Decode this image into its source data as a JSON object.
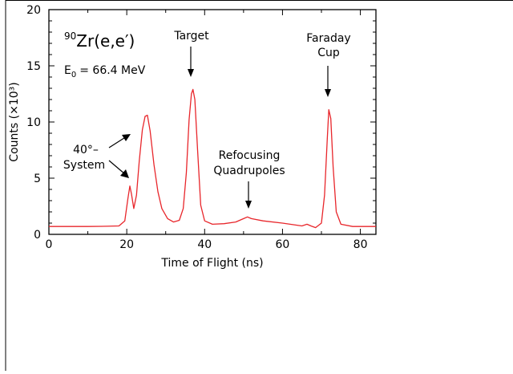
{
  "chart_data": {
    "type": "line",
    "title": "",
    "xlabel": "Time of Flight (ns)",
    "ylabel": "Counts (×10³)",
    "xlim": [
      0,
      84
    ],
    "ylim": [
      0,
      20
    ],
    "xticks": [
      0,
      20,
      40,
      60,
      80
    ],
    "yticks": [
      0,
      5,
      10,
      15,
      20
    ],
    "grid": false,
    "line_color": "#e8262b",
    "series": [
      {
        "name": "",
        "x": [
          0,
          5,
          10,
          15,
          18,
          19.5,
          20.3,
          20.8,
          21.2,
          21.8,
          22.5,
          23.2,
          24,
          24.7,
          25.3,
          26,
          27,
          28,
          29,
          30.5,
          32,
          33.5,
          34.5,
          35.3,
          36,
          36.6,
          37,
          37.5,
          38.2,
          39,
          40,
          42,
          45,
          48,
          50,
          51,
          52,
          55,
          60,
          65,
          66.3,
          67.3,
          68.5,
          70,
          70.8,
          71.5,
          71.9,
          72.4,
          73,
          73.8,
          75,
          78,
          84
        ],
        "y": [
          0.7,
          0.7,
          0.7,
          0.72,
          0.75,
          1.2,
          3.2,
          4.3,
          3.6,
          2.3,
          3.5,
          6.5,
          9.3,
          10.5,
          10.6,
          9.2,
          6.2,
          3.8,
          2.3,
          1.4,
          1.1,
          1.25,
          2.3,
          5.5,
          10.2,
          12.5,
          12.9,
          12.0,
          7.5,
          2.6,
          1.2,
          0.9,
          0.95,
          1.1,
          1.4,
          1.55,
          1.4,
          1.2,
          1.0,
          0.75,
          0.9,
          0.75,
          0.6,
          1.0,
          3.5,
          8.5,
          11.1,
          10.3,
          6.0,
          2.0,
          0.9,
          0.7,
          0.7
        ]
      }
    ],
    "annotations": {
      "reaction_sup": "90",
      "reaction": "Zr(e,e′)",
      "energy_main": "E",
      "energy_sub": "0",
      "energy_rest": "= 66.4 MeV",
      "target": "Target",
      "faraday_line1": "Faraday",
      "faraday_line2": "Cup",
      "system_line1": "40°–",
      "system_line2": "System",
      "refocus_line1": "Refocusing",
      "refocus_line2": "Quadrupoles"
    }
  }
}
